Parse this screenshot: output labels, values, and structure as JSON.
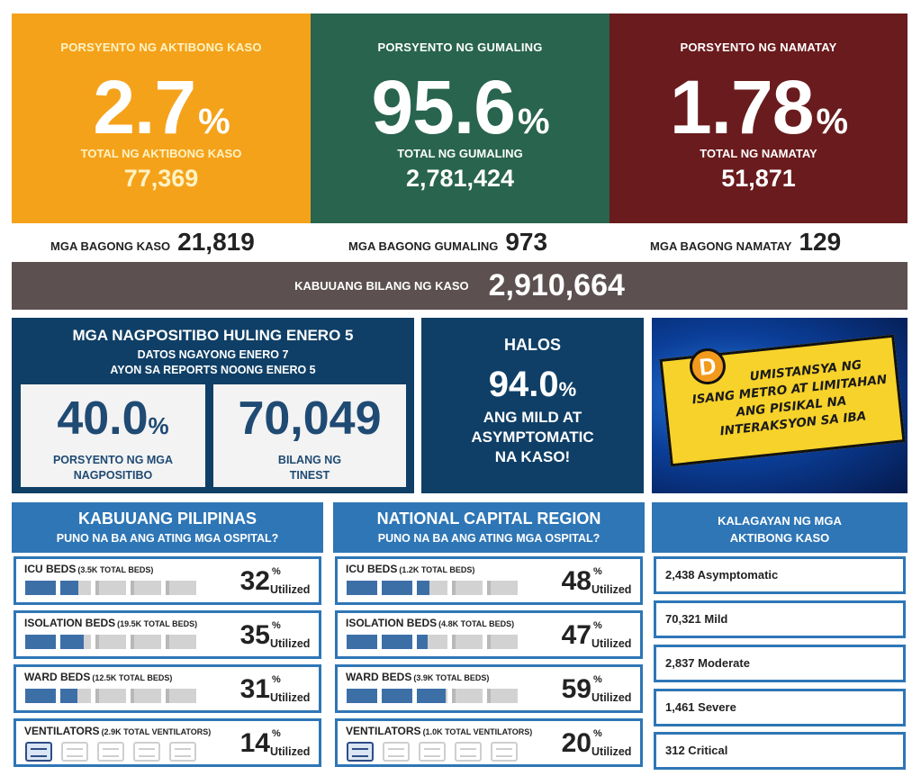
{
  "top_stats": {
    "active": {
      "label": "PORSYENTO NG AKTIBONG KASO",
      "value": "2.7",
      "pct": "%",
      "total_label": "TOTAL NG AKTIBONG KASO",
      "total": "77,369",
      "color": "#f5a21b",
      "text_color": "#fff3c4"
    },
    "recovered": {
      "label": "PORSYENTO NG GUMALING",
      "value": "95.6",
      "pct": "%",
      "total_label": "TOTAL NG GUMALING",
      "total": "2,781,424",
      "color": "#28644e",
      "text_color": "#ffffff"
    },
    "deaths": {
      "label": "PORSYENTO NG NAMATAY",
      "value": "1.78",
      "pct": "%",
      "total_label": "TOTAL NG NAMATAY",
      "total": "51,871",
      "color": "#6a1b1d",
      "text_color": "#ffffff"
    }
  },
  "new_counts": {
    "cases": {
      "label": "MGA BAGONG KASO",
      "value": "21,819"
    },
    "recovered": {
      "label": "MGA BAGONG GUMALING",
      "value": "973"
    },
    "deaths": {
      "label": "MGA BAGONG NAMATAY",
      "value": "129"
    }
  },
  "total_cases": {
    "label": "KABUUANG BILANG NG KASO",
    "value": "2,910,664"
  },
  "positivity": {
    "title": "MGA NAGPOSITIBO HULING ENERO 5",
    "sub1": "DATOS NGAYONG ENERO 7",
    "sub2": "AYON SA REPORTS NOONG ENERO 5",
    "rate": {
      "value": "40.0",
      "pct": "%",
      "label1": "PORSYENTO NG MGA",
      "label2": "NAGPOSITIBO"
    },
    "tested": {
      "value": "70,049",
      "label1": "BILANG NG",
      "label2": "TINEST"
    }
  },
  "mild": {
    "halos": "HALOS",
    "value": "94.0",
    "pct": "%",
    "line1": "ANG MILD AT",
    "line2": "ASYMPTOMATIC",
    "line3": "NA KASO!"
  },
  "banner": {
    "d": "D",
    "line1": "UMISTANSYA NG",
    "line2": "ISANG METRO AT LIMITAHAN",
    "line3": "ANG PISIKAL NA",
    "line4": "INTERAKSYON SA IBA"
  },
  "hospitals": {
    "ph": {
      "title": "KABUUANG PILIPINAS",
      "subtitle": "PUNO NA BA ANG ATING MGA OSPITAL?",
      "rows": [
        {
          "label": "ICU BEDS",
          "capacity": "(3.5K TOTAL BEDS)",
          "value": "32",
          "fraction": 0.32
        },
        {
          "label": "ISOLATION BEDS",
          "capacity": "(19.5K TOTAL BEDS)",
          "value": "35",
          "fraction": 0.35
        },
        {
          "label": "WARD BEDS",
          "capacity": "(12.5K TOTAL BEDS)",
          "value": "31",
          "fraction": 0.31
        },
        {
          "label": "VENTILATORS",
          "capacity": "(2.9K TOTAL VENTILATORS)",
          "value": "14",
          "fraction": 0.14
        }
      ]
    },
    "ncr": {
      "title": "NATIONAL CAPITAL REGION",
      "subtitle": "PUNO NA BA ANG ATING MGA OSPITAL?",
      "rows": [
        {
          "label": "ICU BEDS",
          "capacity": "(1.2K TOTAL BEDS)",
          "value": "48",
          "fraction": 0.48
        },
        {
          "label": "ISOLATION BEDS",
          "capacity": "(4.8K TOTAL BEDS)",
          "value": "47",
          "fraction": 0.47
        },
        {
          "label": "WARD BEDS",
          "capacity": "(3.9K TOTAL BEDS)",
          "value": "59",
          "fraction": 0.59
        },
        {
          "label": "VENTILATORS",
          "capacity": "(1.0K TOTAL VENTILATORS)",
          "value": "20",
          "fraction": 0.2
        }
      ]
    },
    "pct_sign": "%",
    "utilized": "Utilized"
  },
  "active_status": {
    "title1": "KALAGAYAN NG MGA",
    "title2": "AKTIBONG KASO",
    "items": [
      "2,438 Asymptomatic",
      "70,321 Mild",
      "2,837 Moderate",
      "1,461 Severe",
      "312 Critical"
    ]
  },
  "colors": {
    "accent_blue": "#2e76b6",
    "navy": "#0f3f66",
    "bar_fill": "#3d6fa7",
    "total_bar": "#5c5050"
  }
}
